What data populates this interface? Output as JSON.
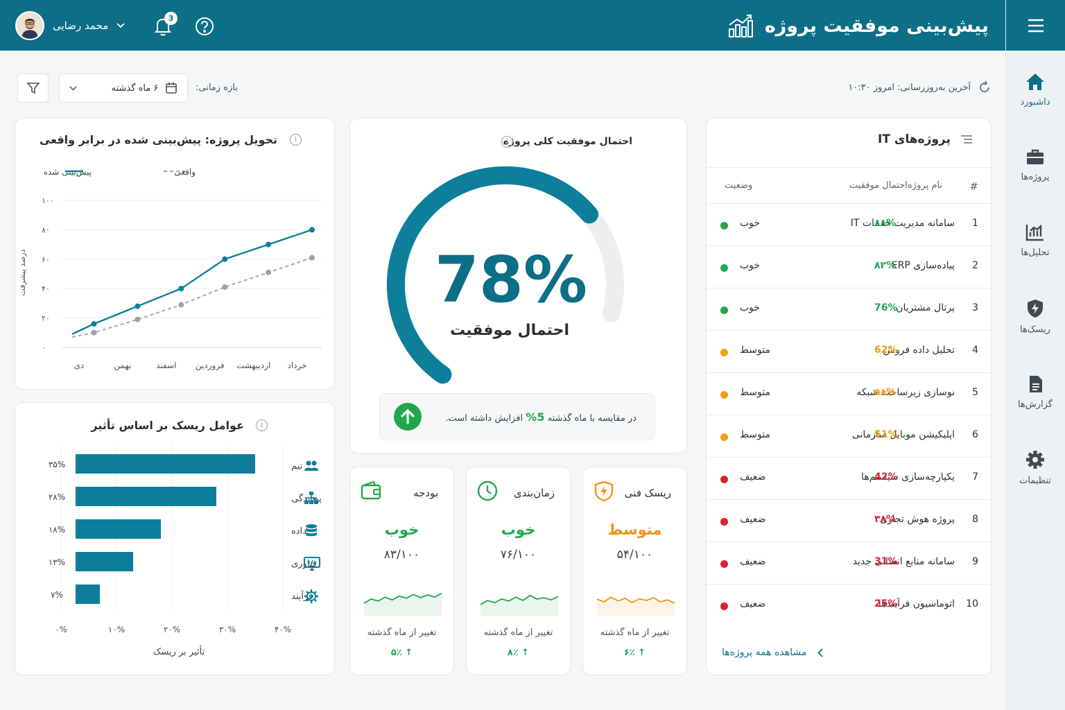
{
  "header": {
    "title": "پیش‌بینی موفقیت پروژه",
    "user_name": "محمد رضایی",
    "notif_count": "3"
  },
  "sidebar": {
    "items": [
      {
        "label": "داشبورد",
        "icon": "home-icon"
      },
      {
        "label": "پروژه‌ها",
        "icon": "briefcase-icon"
      },
      {
        "label": "تحلیل‌ها",
        "icon": "analytics-icon"
      },
      {
        "label": "ریسک‌ها",
        "icon": "risk-shield-icon"
      },
      {
        "label": "گزارش‌ها",
        "icon": "report-icon"
      },
      {
        "label": "تنظیمات",
        "icon": "gear-icon"
      }
    ]
  },
  "toolbar": {
    "last_update": "آخرین به‌روزرسانی: امروز ۱۰:۳۰",
    "range_label": "بازه زمانی:",
    "range_value": "۶ ماه گذشته"
  },
  "projects": {
    "title": "پروژه‌های IT",
    "col_num": "#",
    "col_name": "نام پروژه",
    "col_prob": "احتمال موفقیت",
    "col_status": "وضعیت",
    "rows": [
      {
        "num": "1",
        "name": "سامانه مدیریت خدمات IT",
        "prob": "۸۸%",
        "status": "خوب",
        "color": "#22a64a"
      },
      {
        "num": "2",
        "name": "پیاده‌سازی ERP",
        "prob": "۸۲%",
        "status": "خوب",
        "color": "#22a64a"
      },
      {
        "num": "3",
        "name": "پرتال مشتریان",
        "prob": "76%",
        "status": "خوب",
        "color": "#22a64a"
      },
      {
        "num": "4",
        "name": "تحلیل داده فروش",
        "prob": "62%",
        "status": "متوسط",
        "color": "#f29d12"
      },
      {
        "num": "5",
        "name": "نوسازی زیرساخت شبکه",
        "prob": "۵۸%",
        "status": "متوسط",
        "color": "#f29d12"
      },
      {
        "num": "6",
        "name": "اپلیکیشن موبایل سازمانی",
        "prob": "51%",
        "status": "متوسط",
        "color": "#f29d12"
      },
      {
        "num": "7",
        "name": "یکپارچه‌سازی سیستم‌ها",
        "prob": "42%",
        "status": "ضعیف",
        "color": "#d9232e"
      },
      {
        "num": "8",
        "name": "پروژه هوش تجاری",
        "prob": "۳۸%",
        "status": "ضعیف",
        "color": "#d9232e"
      },
      {
        "num": "9",
        "name": "سامانه منابع انسانی جدید",
        "prob": "31%",
        "status": "ضعیف",
        "color": "#d9232e"
      },
      {
        "num": "10",
        "name": "اتوماسیون فرآیندها",
        "prob": "25%",
        "status": "ضعیف",
        "color": "#d9232e"
      }
    ],
    "view_all": "مشاهده همه پروژه‌ها"
  },
  "gauge": {
    "title": "احتمال موفقیت کلی پروژه",
    "value": "78%",
    "value_num": 78,
    "label": "احتمال موفقیت",
    "compare_pre": "در مقایسه با ماه گذشته",
    "compare_val": "5%",
    "compare_post": "افزایش داشته است."
  },
  "kpis": [
    {
      "title": "ریسک فنی",
      "status": "متوسط",
      "score": "۵۴/۱۰۰",
      "change": "تغییر از ماه گذشته",
      "delta": "↑ ۶٪",
      "color": "#f0941a",
      "icon": "shield-bolt-icon",
      "spark": [
        0.55,
        0.45,
        0.62,
        0.48,
        0.58,
        0.42,
        0.56,
        0.5,
        0.6,
        0.45,
        0.52,
        0.4
      ]
    },
    {
      "title": "زمان‌بندی",
      "status": "خوب",
      "score": "۷۶/۱۰۰",
      "change": "تغییر از ماه گذشته",
      "delta": "↑ ۸٪",
      "color": "#22a64a",
      "icon": "clock-icon",
      "spark": [
        0.35,
        0.5,
        0.42,
        0.55,
        0.48,
        0.62,
        0.5,
        0.68,
        0.55,
        0.6,
        0.52,
        0.64
      ]
    },
    {
      "title": "بودجه",
      "status": "خوب",
      "score": "۸۳/۱۰۰",
      "change": "تغییر از ماه گذشته",
      "delta": "↑ ۵٪",
      "color": "#22a64a",
      "icon": "wallet-icon",
      "spark": [
        0.4,
        0.55,
        0.48,
        0.62,
        0.52,
        0.66,
        0.58,
        0.72,
        0.6,
        0.7,
        0.62,
        0.76
      ]
    }
  ],
  "delivery": {
    "title": "تحویل پروژه: پیش‌بینی شده در برابر واقعی",
    "legend_pred": "پیش‌بینی شده",
    "legend_actual": "واقعی"
  },
  "risk_factors": {
    "title": "عوامل ریسک بر اساس تأثیر"
  },
  "chart_data": [
    {
      "type": "line",
      "title": "تحویل پروژه: پیش‌بینی شده در برابر واقعی",
      "ylabel": "درصد پیشرفت",
      "categories": [
        "دی",
        "بهمن",
        "اسفند",
        "فروردین",
        "اردیبهشت",
        "خرداد"
      ],
      "yticks": [
        "۰",
        "۲۰",
        "۴۰",
        "۶۰",
        "۸۰",
        "۱۰۰"
      ],
      "ylim": [
        0,
        100
      ],
      "series": [
        {
          "name": "پیش‌بینی شده",
          "x": [
            0,
            0.5,
            1.5,
            2.5,
            3.5,
            4.5,
            5.5
          ],
          "values": [
            9,
            16,
            28,
            40,
            60,
            70,
            80
          ],
          "color": "#0d7f9a"
        },
        {
          "name": "واقعی",
          "x": [
            0,
            0.5,
            1.5,
            2.5,
            3.5,
            4.5,
            5.5
          ],
          "values": [
            7,
            10,
            19,
            29,
            41,
            51,
            61
          ],
          "color": "#9ba3ab"
        }
      ],
      "grid": true,
      "legend": "top"
    },
    {
      "type": "bar",
      "orientation": "horizontal",
      "title": "عوامل ریسک بر اساس تأثیر",
      "xlabel": "تأثیر بر ریسک",
      "categories": [
        "تیم",
        "پیچیدگی",
        "داده",
        "فناوری",
        "فرآیند"
      ],
      "icons": [
        "team-icon",
        "hierarchy-icon",
        "database-icon",
        "code-monitor-icon",
        "process-gear-icon"
      ],
      "values": [
        35,
        28,
        18,
        13,
        7
      ],
      "value_labels": [
        "۳۵%",
        "۲۸%",
        "۱۸%",
        "۱۳%",
        "۷%"
      ],
      "xticks": [
        "۰%",
        "۱۰%",
        "۲۰%",
        "۳۰%",
        "۴۰%"
      ],
      "xlim": [
        0,
        40
      ],
      "color": "#0d7f9a"
    }
  ]
}
